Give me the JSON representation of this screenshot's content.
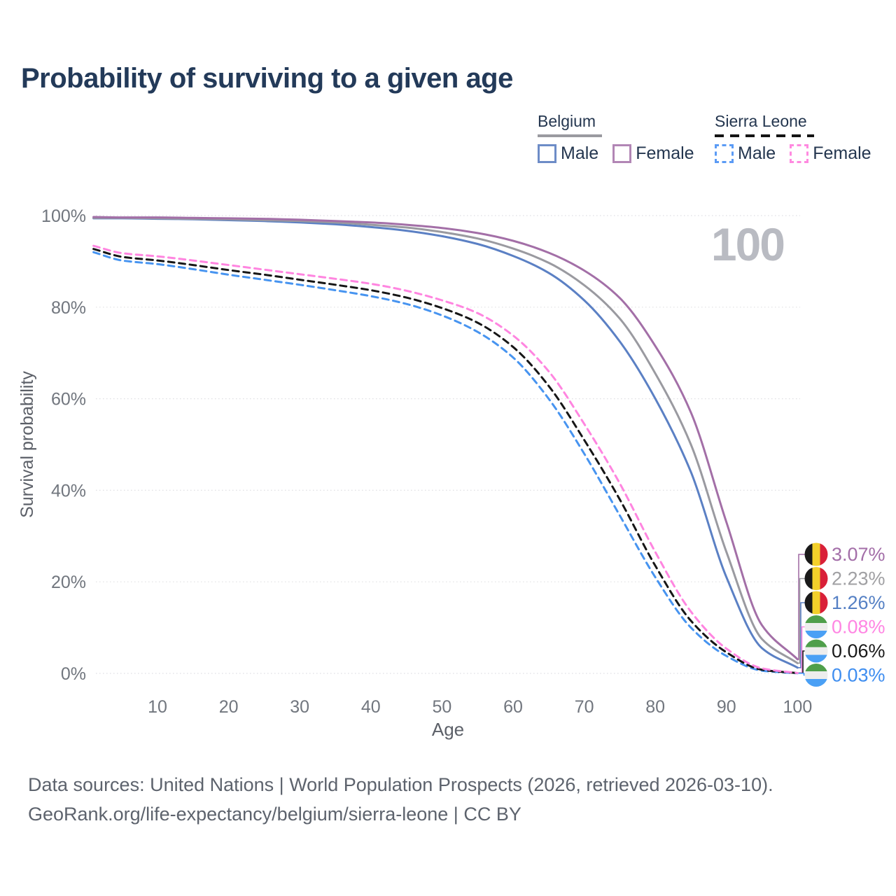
{
  "title": "Probability of surviving to a given age",
  "legend": {
    "groups": [
      {
        "country": "Belgium",
        "line_style": "solid",
        "items": [
          {
            "label": "Male",
            "color": "#6d8cc7"
          },
          {
            "label": "Female",
            "color": "#b286b5"
          }
        ]
      },
      {
        "country": "Sierra Leone",
        "line_style": "dashed",
        "items": [
          {
            "label": "Male",
            "color": "#5b9bf5"
          },
          {
            "label": "Female",
            "color": "#ff8ae0"
          }
        ]
      }
    ]
  },
  "chart_data": {
    "type": "line",
    "title": "Probability of surviving to a given age",
    "xlabel": "Age",
    "ylabel": "Survival probability",
    "xlim": [
      1,
      100
    ],
    "ylim": [
      0,
      100
    ],
    "x_ticks": [
      10,
      20,
      30,
      40,
      50,
      60,
      70,
      80,
      90,
      100
    ],
    "y_tick_labels": [
      "0%",
      "20%",
      "40%",
      "60%",
      "80%",
      "100%"
    ],
    "y_tick_values": [
      0,
      20,
      40,
      60,
      80,
      100
    ],
    "grid": true,
    "legend_position": "top-right",
    "watermark": "100",
    "ages": [
      1,
      5,
      10,
      15,
      20,
      25,
      30,
      35,
      40,
      45,
      50,
      55,
      60,
      65,
      70,
      75,
      80,
      85,
      90,
      95,
      100
    ],
    "series": [
      {
        "id": "sierra-leone-male",
        "country": "Sierra Leone",
        "sex": "Male",
        "line": "dashed",
        "color": "#4794f0",
        "label_color": "#3f8ef0",
        "flag": "sierra-leone",
        "end_label": "0.03%",
        "values": [
          92.0,
          90.2,
          89.4,
          88.3,
          87.1,
          86.0,
          84.9,
          83.7,
          82.4,
          80.7,
          78.2,
          74.6,
          69.0,
          60.0,
          48.0,
          34.5,
          21.0,
          10.0,
          3.8,
          0.6,
          0.03
        ]
      },
      {
        "id": "sierra-leone-total",
        "country": "Sierra Leone",
        "sex": "Both sexes",
        "line": "dashed",
        "color": "#161616",
        "label_color": "#1a1a1a",
        "flag": "sierra-leone",
        "end_label": "0.06%",
        "values": [
          92.7,
          91.0,
          90.2,
          89.2,
          88.1,
          87.1,
          86.0,
          84.9,
          83.7,
          82.1,
          79.8,
          76.6,
          71.3,
          62.8,
          51.0,
          38.0,
          23.5,
          11.5,
          4.6,
          0.8,
          0.06
        ]
      },
      {
        "id": "sierra-leone-female",
        "country": "Sierra Leone",
        "sex": "Female",
        "line": "dashed",
        "color": "#ff85e0",
        "label_color": "#ff85e3",
        "flag": "sierra-leone",
        "end_label": "0.08%",
        "values": [
          93.4,
          91.8,
          91.1,
          90.2,
          89.2,
          88.2,
          87.2,
          86.2,
          85.1,
          83.6,
          81.5,
          78.7,
          73.8,
          66.0,
          54.5,
          41.5,
          26.5,
          13.5,
          5.4,
          1.1,
          0.08
        ]
      },
      {
        "id": "belgium-male",
        "country": "Belgium",
        "sex": "Male",
        "line": "solid",
        "color": "#5b80c4",
        "label_color": "#5580c4",
        "flag": "belgium",
        "end_label": "1.26%",
        "values": [
          99.4,
          99.4,
          99.3,
          99.2,
          99.0,
          98.8,
          98.5,
          98.1,
          97.5,
          96.7,
          95.5,
          93.8,
          91.2,
          87.5,
          81.5,
          72.5,
          60.0,
          44.0,
          21.0,
          5.5,
          1.26
        ]
      },
      {
        "id": "belgium-total",
        "country": "Belgium",
        "sex": "Both sexes",
        "line": "solid",
        "color": "#9a9aa0",
        "label_color": "#a0a0a3",
        "flag": "belgium",
        "end_label": "2.23%",
        "values": [
          99.5,
          99.5,
          99.4,
          99.3,
          99.2,
          99.0,
          98.8,
          98.5,
          98.0,
          97.4,
          96.4,
          95.0,
          92.8,
          89.7,
          84.8,
          77.5,
          65.5,
          50.0,
          26.5,
          7.5,
          2.23
        ]
      },
      {
        "id": "belgium-female",
        "country": "Belgium",
        "sex": "Female",
        "line": "solid",
        "color": "#a36fa7",
        "label_color": "#a36ea8",
        "flag": "belgium",
        "end_label": "3.07%",
        "values": [
          99.7,
          99.6,
          99.6,
          99.5,
          99.4,
          99.3,
          99.1,
          98.8,
          98.5,
          98.0,
          97.3,
          96.2,
          94.5,
          91.9,
          88.0,
          82.0,
          71.5,
          57.0,
          33.0,
          10.5,
          3.07
        ]
      }
    ],
    "flag_colors": {
      "belgium": [
        "#1a1a1a",
        "#f3d02a",
        "#d92038"
      ],
      "sierra-leone": [
        "#4f9f4b",
        "#ededed",
        "#4aa0f5"
      ]
    }
  },
  "footer": {
    "line1": "Data sources: United Nations | World Population Prospects (2026, retrieved 2026-03-10).",
    "line2": "GeoRank.org/life-expectancy/belgium/sierra-leone | CC BY"
  }
}
